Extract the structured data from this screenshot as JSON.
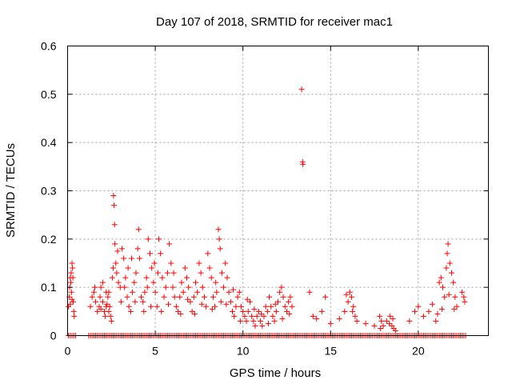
{
  "chart_data": {
    "type": "scatter",
    "title": "Day 107 of 2018, SRMTID for receiver mac1",
    "xlabel": "GPS time / hours",
    "ylabel": "SRMTID / TECUs",
    "xlim": [
      0,
      24
    ],
    "ylim": [
      0,
      0.6
    ],
    "x_ticks": [
      0,
      5,
      10,
      15,
      20
    ],
    "y_ticks": [
      0,
      0.1,
      0.2,
      0.3,
      0.4,
      0.5,
      0.6
    ],
    "x_tick_labels": [
      "0",
      "5",
      "10",
      "15",
      "20"
    ],
    "y_tick_labels": [
      "0",
      "0.1",
      "0.2",
      "0.3",
      "0.4",
      "0.5",
      "0.6"
    ],
    "grid": true,
    "marker": "+",
    "color": "#ff0000",
    "series": [
      {
        "name": "mac1",
        "points": [
          [
            0.05,
            0.06
          ],
          [
            0.1,
            0.08
          ],
          [
            0.12,
            0.1
          ],
          [
            0.15,
            0.12
          ],
          [
            0.18,
            0.11
          ],
          [
            0.2,
            0.13
          ],
          [
            0.22,
            0.09
          ],
          [
            0.25,
            0.15
          ],
          [
            0.28,
            0.14
          ],
          [
            0.3,
            0.12
          ],
          [
            0.32,
            0.07
          ],
          [
            0.35,
            0.05
          ],
          [
            0.38,
            0.04
          ],
          [
            0.25,
            0.075
          ],
          [
            0.15,
            0.065
          ],
          [
            1.3,
            0.06
          ],
          [
            1.4,
            0.08
          ],
          [
            1.5,
            0.09
          ],
          [
            1.55,
            0.1
          ],
          [
            1.6,
            0.07
          ],
          [
            1.7,
            0.05
          ],
          [
            1.8,
            0.06
          ],
          [
            1.85,
            0.08
          ],
          [
            1.9,
            0.1
          ],
          [
            2.0,
            0.07
          ],
          [
            2.1,
            0.05
          ],
          [
            2.15,
            0.04
          ],
          [
            2.2,
            0.06
          ],
          [
            2.3,
            0.08
          ],
          [
            2.35,
            0.09
          ],
          [
            2.4,
            0.06
          ],
          [
            2.45,
            0.04
          ],
          [
            2.5,
            0.03
          ],
          [
            2.2,
            0.09
          ],
          [
            2.0,
            0.11
          ],
          [
            1.9,
            0.055
          ],
          [
            2.25,
            0.065
          ],
          [
            2.35,
            0.05
          ],
          [
            2.55,
            0.12
          ],
          [
            2.6,
            0.14
          ],
          [
            2.62,
            0.29
          ],
          [
            2.65,
            0.27
          ],
          [
            2.68,
            0.23
          ],
          [
            2.7,
            0.19
          ],
          [
            2.75,
            0.15
          ],
          [
            2.8,
            0.13
          ],
          [
            2.9,
            0.11
          ],
          [
            3.0,
            0.1
          ],
          [
            3.1,
            0.18
          ],
          [
            3.2,
            0.16
          ],
          [
            3.3,
            0.12
          ],
          [
            3.4,
            0.08
          ],
          [
            3.5,
            0.06
          ],
          [
            3.6,
            0.05
          ],
          [
            3.7,
            0.09
          ],
          [
            3.8,
            0.11
          ],
          [
            3.9,
            0.13
          ],
          [
            4.0,
            0.18
          ],
          [
            4.05,
            0.22
          ],
          [
            4.1,
            0.16
          ],
          [
            2.85,
            0.175
          ],
          [
            3.05,
            0.07
          ],
          [
            3.25,
            0.1
          ],
          [
            3.45,
            0.14
          ],
          [
            3.65,
            0.16
          ],
          [
            3.85,
            0.07
          ],
          [
            4.2,
            0.08
          ],
          [
            4.3,
            0.07
          ],
          [
            4.4,
            0.09
          ],
          [
            4.5,
            0.12
          ],
          [
            4.6,
            0.2
          ],
          [
            4.7,
            0.17
          ],
          [
            4.8,
            0.14
          ],
          [
            4.9,
            0.11
          ],
          [
            5.0,
            0.09
          ],
          [
            5.1,
            0.06
          ],
          [
            5.2,
            0.2
          ],
          [
            5.3,
            0.17
          ],
          [
            5.4,
            0.12
          ],
          [
            5.5,
            0.08
          ],
          [
            4.35,
            0.05
          ],
          [
            4.55,
            0.1
          ],
          [
            4.75,
            0.06
          ],
          [
            4.95,
            0.15
          ],
          [
            5.15,
            0.13
          ],
          [
            5.35,
            0.05
          ],
          [
            5.6,
            0.1
          ],
          [
            5.7,
            0.13
          ],
          [
            5.8,
            0.19
          ],
          [
            5.9,
            0.15
          ],
          [
            6.0,
            0.1
          ],
          [
            6.1,
            0.08
          ],
          [
            6.2,
            0.06
          ],
          [
            6.3,
            0.05
          ],
          [
            6.4,
            0.08
          ],
          [
            6.5,
            0.11
          ],
          [
            6.6,
            0.09
          ],
          [
            6.7,
            0.14
          ],
          [
            6.8,
            0.12
          ],
          [
            6.9,
            0.1
          ],
          [
            7.0,
            0.07
          ],
          [
            7.1,
            0.05
          ],
          [
            7.2,
            0.08
          ],
          [
            7.3,
            0.11
          ],
          [
            7.4,
            0.09
          ],
          [
            7.5,
            0.15
          ],
          [
            7.6,
            0.13
          ],
          [
            7.7,
            0.1
          ],
          [
            7.8,
            0.08
          ],
          [
            7.9,
            0.06
          ],
          [
            5.75,
            0.065
          ],
          [
            6.05,
            0.13
          ],
          [
            6.45,
            0.045
          ],
          [
            6.85,
            0.075
          ],
          [
            7.25,
            0.045
          ],
          [
            7.65,
            0.065
          ],
          [
            8.0,
            0.17
          ],
          [
            8.1,
            0.14
          ],
          [
            8.2,
            0.12
          ],
          [
            8.3,
            0.08
          ],
          [
            8.4,
            0.06
          ],
          [
            8.5,
            0.09
          ],
          [
            8.6,
            0.22
          ],
          [
            8.65,
            0.2
          ],
          [
            8.7,
            0.18
          ],
          [
            8.8,
            0.13
          ],
          [
            8.9,
            0.1
          ],
          [
            9.0,
            0.15
          ],
          [
            9.1,
            0.12
          ],
          [
            9.2,
            0.09
          ],
          [
            8.25,
            0.055
          ],
          [
            8.45,
            0.11
          ],
          [
            8.75,
            0.07
          ],
          [
            9.05,
            0.065
          ],
          [
            9.3,
            0.07
          ],
          [
            9.4,
            0.05
          ],
          [
            9.5,
            0.04
          ],
          [
            9.6,
            0.06
          ],
          [
            9.7,
            0.08
          ],
          [
            9.8,
            0.09
          ],
          [
            9.9,
            0.06
          ],
          [
            10.0,
            0.05
          ],
          [
            10.1,
            0.04
          ],
          [
            10.2,
            0.03
          ],
          [
            10.3,
            0.05
          ],
          [
            10.4,
            0.07
          ],
          [
            10.5,
            0.04
          ],
          [
            10.6,
            0.03
          ],
          [
            10.7,
            0.02
          ],
          [
            10.8,
            0.04
          ],
          [
            10.9,
            0.05
          ],
          [
            11.0,
            0.03
          ],
          [
            11.1,
            0.02
          ],
          [
            11.2,
            0.04
          ],
          [
            11.3,
            0.06
          ],
          [
            11.4,
            0.05
          ],
          [
            11.5,
            0.08
          ],
          [
            11.6,
            0.06
          ],
          [
            11.7,
            0.04
          ],
          [
            11.8,
            0.03
          ],
          [
            11.9,
            0.05
          ],
          [
            12.0,
            0.07
          ],
          [
            12.1,
            0.09
          ],
          [
            12.2,
            0.1
          ],
          [
            12.3,
            0.08
          ],
          [
            12.4,
            0.06
          ],
          [
            12.5,
            0.05
          ],
          [
            12.6,
            0.07
          ],
          [
            12.7,
            0.08
          ],
          [
            12.8,
            0.06
          ],
          [
            9.45,
            0.095
          ],
          [
            9.85,
            0.03
          ],
          [
            10.25,
            0.075
          ],
          [
            10.65,
            0.055
          ],
          [
            11.05,
            0.045
          ],
          [
            11.45,
            0.025
          ],
          [
            11.85,
            0.065
          ],
          [
            12.25,
            0.035
          ],
          [
            12.65,
            0.045
          ],
          [
            13.35,
            0.51
          ],
          [
            13.4,
            0.36
          ],
          [
            13.42,
            0.355
          ],
          [
            13.8,
            0.09
          ],
          [
            14.0,
            0.04
          ],
          [
            14.2,
            0.035
          ],
          [
            14.5,
            0.05
          ],
          [
            14.7,
            0.08
          ],
          [
            15.0,
            0.025
          ],
          [
            15.5,
            0.035
          ],
          [
            15.8,
            0.05
          ],
          [
            16.0,
            0.07
          ],
          [
            16.1,
            0.09
          ],
          [
            16.2,
            0.08
          ],
          [
            16.3,
            0.06
          ],
          [
            16.4,
            0.04
          ],
          [
            16.5,
            0.03
          ],
          [
            15.9,
            0.085
          ],
          [
            16.25,
            0.05
          ],
          [
            17.0,
            0.025
          ],
          [
            17.5,
            0.02
          ],
          [
            17.8,
            0.04
          ],
          [
            17.9,
            0.03
          ],
          [
            18.0,
            0.02
          ],
          [
            18.2,
            0.03
          ],
          [
            18.4,
            0.04
          ],
          [
            18.5,
            0.02
          ],
          [
            18.6,
            0.015
          ],
          [
            18.7,
            0.01
          ],
          [
            17.85,
            0.015
          ],
          [
            18.35,
            0.025
          ],
          [
            18.55,
            0.035
          ],
          [
            19.5,
            0.03
          ],
          [
            19.8,
            0.05
          ],
          [
            20.0,
            0.06
          ],
          [
            20.3,
            0.04
          ],
          [
            20.6,
            0.05
          ],
          [
            20.8,
            0.065
          ],
          [
            21.0,
            0.03
          ],
          [
            21.2,
            0.11
          ],
          [
            21.3,
            0.12
          ],
          [
            21.4,
            0.1
          ],
          [
            21.5,
            0.08
          ],
          [
            21.6,
            0.14
          ],
          [
            21.65,
            0.17
          ],
          [
            21.7,
            0.19
          ],
          [
            21.8,
            0.15
          ],
          [
            21.9,
            0.13
          ],
          [
            22.0,
            0.11
          ],
          [
            22.1,
            0.08
          ],
          [
            22.2,
            0.06
          ],
          [
            22.5,
            0.09
          ],
          [
            22.6,
            0.08
          ],
          [
            22.65,
            0.07
          ],
          [
            21.1,
            0.045
          ],
          [
            21.35,
            0.055
          ],
          [
            21.75,
            0.085
          ],
          [
            22.05,
            0.055
          ]
        ],
        "zero_x": [
          0.05,
          0.15,
          0.25,
          0.35,
          0.45,
          1.2,
          1.3,
          1.4,
          1.5,
          1.6,
          1.7,
          1.8,
          1.9,
          2.0,
          2.1,
          2.2,
          2.3,
          2.4,
          2.5,
          2.6,
          2.7,
          2.8,
          2.9,
          3.0,
          3.1,
          3.2,
          3.3,
          3.4,
          3.5,
          3.6,
          3.7,
          3.8,
          3.9,
          4.0,
          4.1,
          4.2,
          4.3,
          4.4,
          4.5,
          4.6,
          4.7,
          4.8,
          4.9,
          5.0,
          5.1,
          5.2,
          5.3,
          5.4,
          5.5,
          5.6,
          5.7,
          5.8,
          5.9,
          6.0,
          6.1,
          6.2,
          6.3,
          6.4,
          6.5,
          6.6,
          6.7,
          6.8,
          6.9,
          7.0,
          7.1,
          7.2,
          7.3,
          7.4,
          7.5,
          7.6,
          7.7,
          7.8,
          7.9,
          8.0,
          8.1,
          8.2,
          8.3,
          8.4,
          8.5,
          8.6,
          8.7,
          8.8,
          8.9,
          9.0,
          9.1,
          9.2,
          9.3,
          9.4,
          9.5,
          9.6,
          9.7,
          9.8,
          9.9,
          10.0,
          10.1,
          10.2,
          10.3,
          10.4,
          10.5,
          10.6,
          10.7,
          10.8,
          10.9,
          11.0,
          11.1,
          11.2,
          11.3,
          11.4,
          11.5,
          11.6,
          11.7,
          11.8,
          11.9,
          12.0,
          12.1,
          12.2,
          12.3,
          12.4,
          12.5,
          12.6,
          12.7,
          12.8,
          12.9,
          13.0,
          13.1,
          13.2,
          13.3,
          13.4,
          13.5,
          13.6,
          13.7,
          13.8,
          13.9,
          14.0,
          14.1,
          14.2,
          14.3,
          14.4,
          14.5,
          14.6,
          14.7,
          14.8,
          14.9,
          15.0,
          15.1,
          15.2,
          15.3,
          15.4,
          15.5,
          15.6,
          15.7,
          15.8,
          15.9,
          16.0,
          16.1,
          16.2,
          16.3,
          16.4,
          16.5,
          16.6,
          16.7,
          16.8,
          16.9,
          17.0,
          17.1,
          17.2,
          17.3,
          17.4,
          17.5,
          17.6,
          17.7,
          17.8,
          17.9,
          18.0,
          18.1,
          18.2,
          18.3,
          18.4,
          18.5,
          18.6,
          18.7,
          18.8,
          18.9,
          19.0,
          19.1,
          19.2,
          19.3,
          19.4,
          19.5,
          19.6,
          19.7,
          19.8,
          19.9,
          20.0,
          20.1,
          20.2,
          20.3,
          20.4,
          20.5,
          20.6,
          20.7,
          20.8,
          20.9,
          21.0,
          21.1,
          21.2,
          21.3,
          21.4,
          21.5,
          21.6,
          21.7,
          21.8,
          21.9,
          22.0,
          22.1,
          22.2,
          22.3,
          22.4,
          22.5,
          22.6,
          22.7
        ]
      }
    ]
  }
}
